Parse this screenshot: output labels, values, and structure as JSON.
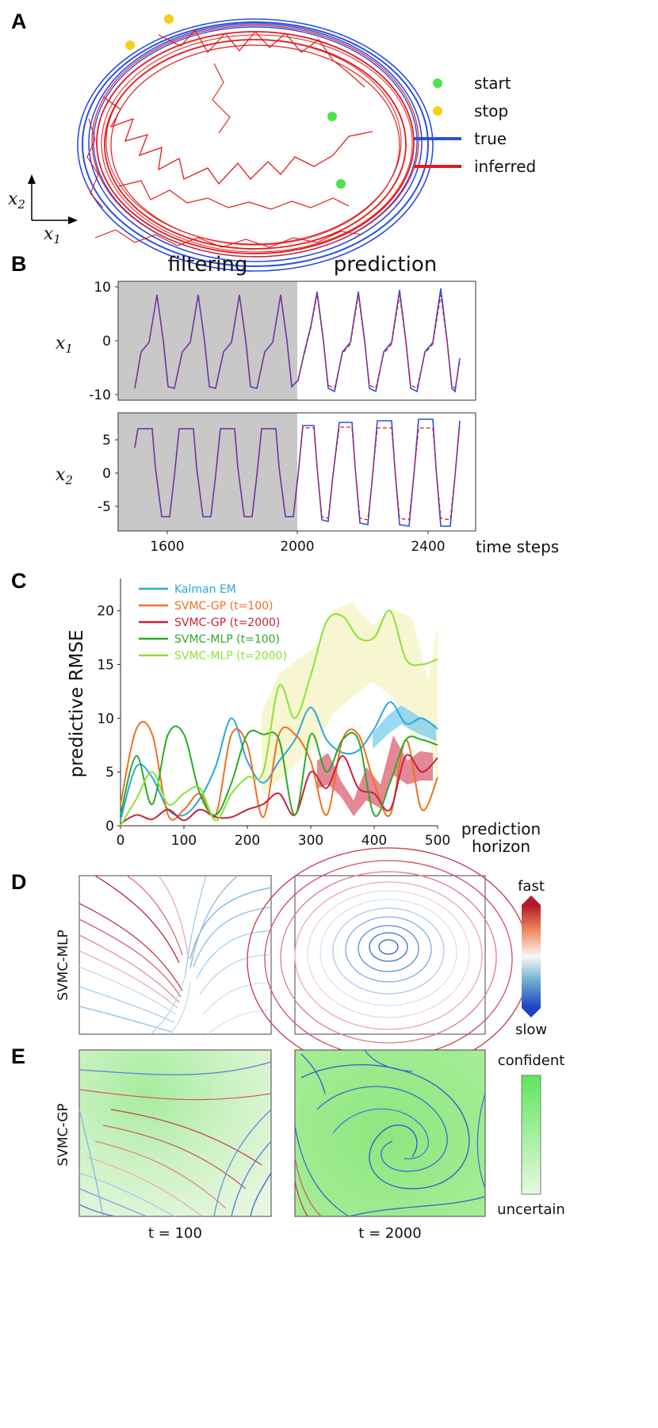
{
  "panels": {
    "a": {
      "letter": "A",
      "legend": {
        "start": "start",
        "stop": "stop",
        "true": "true",
        "inferred": "inferred"
      },
      "axes": {
        "x": "x",
        "x_sub": "1",
        "y": "x",
        "y_sub": "2"
      },
      "colors": {
        "true": "#2b4fe0",
        "inferred": "#e41a1c",
        "start": "#4de34d",
        "stop": "#f4d019"
      }
    },
    "b": {
      "letter": "B",
      "filtering_label": "filtering",
      "prediction_label": "prediction",
      "x1": {
        "var": "x",
        "sub": "1",
        "yticks": [
          "10",
          "0",
          "-10"
        ]
      },
      "x2": {
        "var": "x",
        "sub": "2",
        "yticks": [
          "5",
          "0",
          "-5"
        ]
      },
      "xticks": [
        "1600",
        "2000",
        "2400"
      ],
      "xlabel": "time steps",
      "colors": {
        "true": "#2b4fe0",
        "inferred": "#e41a1c",
        "shade": "#c8c8c8"
      }
    },
    "c": {
      "letter": "C",
      "ylabel": "predictive RMSE",
      "xlabel_line1": "prediction",
      "xlabel_line2": "horizon"
    },
    "d": {
      "letter": "D",
      "row_label": "SVMC-MLP",
      "cbar_top": "fast",
      "cbar_bottom": "slow"
    },
    "e": {
      "letter": "E",
      "row_label": "SVMC-GP",
      "cbar_top": "confident",
      "cbar_bottom": "uncertain",
      "col_labels": [
        "t = 100",
        "t = 2000"
      ]
    }
  },
  "chart_data": {
    "type": "line",
    "title": "",
    "xlabel": "prediction horizon",
    "ylabel": "predictive RMSE",
    "xlim": [
      0,
      500
    ],
    "ylim": [
      0,
      23
    ],
    "xticks": [
      0,
      100,
      200,
      300,
      400,
      500
    ],
    "yticks": [
      0,
      5,
      10,
      15,
      20
    ],
    "legend_position": "top-left",
    "x": [
      0,
      25,
      50,
      75,
      100,
      125,
      150,
      175,
      200,
      225,
      250,
      275,
      300,
      325,
      350,
      375,
      400,
      425,
      450,
      475,
      500
    ],
    "series": [
      {
        "name": "Kalman EM",
        "color": "#2aa7e0",
        "values": [
          0.5,
          5.5,
          4.5,
          1.5,
          1.0,
          2.5,
          5.5,
          10.0,
          6.0,
          4.0,
          6.0,
          8.0,
          11.0,
          8.0,
          6.8,
          7.0,
          9.0,
          11.5,
          9.5,
          10.0,
          9.0
        ]
      },
      {
        "name": "SVMC-GP (t=100)",
        "color": "#f07020",
        "values": [
          2.0,
          9.0,
          8.5,
          1.0,
          1.5,
          3.0,
          1.0,
          8.5,
          7.5,
          0.8,
          8.5,
          8.5,
          6.0,
          1.0,
          8.0,
          8.5,
          4.0,
          1.0,
          8.0,
          1.5,
          4.5
        ]
      },
      {
        "name": "SVMC-GP (t=2000)",
        "color": "#c8213a",
        "values": [
          0.2,
          1.0,
          0.6,
          1.5,
          0.5,
          1.5,
          0.8,
          0.8,
          1.5,
          2.0,
          3.0,
          1.0,
          5.0,
          3.5,
          6.5,
          3.5,
          3.0,
          1.5,
          6.5,
          5.0,
          6.3
        ]
      },
      {
        "name": "SVMC-MLP (t=100)",
        "color": "#2aaa2a",
        "values": [
          1.0,
          6.5,
          2.0,
          8.5,
          8.5,
          3.0,
          1.0,
          4.0,
          8.5,
          8.5,
          8.0,
          1.0,
          8.5,
          5.0,
          8.0,
          8.0,
          1.0,
          4.0,
          8.0,
          8.0,
          7.5
        ]
      },
      {
        "name": "SVMC-MLP (t=2000)",
        "color": "#8ae234",
        "values": [
          0.0,
          2.5,
          5.0,
          2.0,
          3.0,
          3.5,
          0.5,
          3.0,
          4.5,
          5.0,
          13.0,
          10.0,
          14.0,
          19.0,
          19.5,
          17.5,
          17.5,
          20.0,
          15.5,
          15.0,
          15.5
        ]
      }
    ]
  }
}
